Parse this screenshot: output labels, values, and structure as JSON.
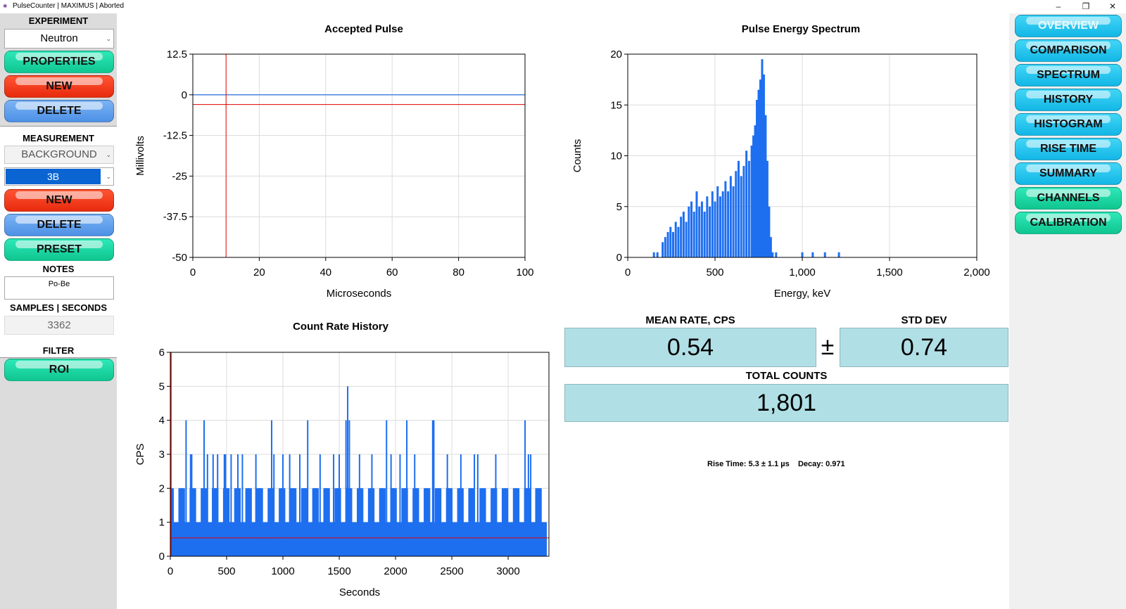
{
  "window": {
    "title": "PulseCounter | MAXIMUS | Aborted",
    "minimize": "–",
    "restore": "❐",
    "close": "✕"
  },
  "left": {
    "experiment_label": "EXPERIMENT",
    "experiment_value": "Neutron",
    "properties": "PROPERTIES",
    "new1": "NEW",
    "delete1": "DELETE",
    "measurement_label": "MEASUREMENT",
    "measurement_type": "BACKGROUND",
    "measurement_value": "3B",
    "new2": "NEW",
    "delete2": "DELETE",
    "preset": "PRESET",
    "notes_label": "NOTES",
    "notes_value": "Po-Be",
    "samples_label": "SAMPLES | SECONDS",
    "samples_value": "3362",
    "filter_label": "FILTER",
    "roi": "ROI"
  },
  "nav": [
    "OVERVIEW",
    "COMPARISON",
    "SPECTRUM",
    "HISTORY",
    "HISTOGRAM",
    "RISE TIME",
    "SUMMARY",
    "CHANNELS",
    "CALIBRATION"
  ],
  "nav_colors": [
    "cyan",
    "cyan",
    "cyan",
    "cyan",
    "cyan",
    "cyan",
    "cyan",
    "green",
    "green"
  ],
  "stats": {
    "mean_label": "MEAN RATE, CPS",
    "mean_value": "0.54",
    "pm": "±",
    "std_label": "STD DEV",
    "std_value": "0.74",
    "total_label": "TOTAL COUNTS",
    "total_value": "1,801",
    "rise_text": "Rise Time: 5.3 ± 1.1 µs    Decay: 0.971"
  },
  "colors": {
    "bar": "#1e6ff0",
    "trace": "#4a86e0",
    "marker": "#e00000",
    "grid": "#dcdcdc"
  },
  "chart_data": [
    {
      "type": "line",
      "title": "Accepted Pulse",
      "xlabel": "Microseconds",
      "ylabel": "Millivolts",
      "xlim": [
        0,
        100
      ],
      "ylim": [
        -50,
        12.5
      ],
      "xticks": [
        "0",
        "20",
        "40",
        "60",
        "80",
        "100"
      ],
      "yticks": [
        "12.5",
        "0",
        "-12.5",
        "-25",
        "-37.5",
        "-50"
      ],
      "series": [
        {
          "x": [
            0,
            100
          ],
          "y": [
            0,
            0
          ]
        }
      ],
      "markers": {
        "vline_x": 10,
        "hline_y": -3
      },
      "grid": true
    },
    {
      "type": "bar",
      "title": "Pulse Energy Spectrum",
      "xlabel": "Energy, keV",
      "ylabel": "Counts",
      "xlim": [
        0,
        2000
      ],
      "ylim": [
        0,
        20
      ],
      "xticks": [
        "0",
        "500",
        "1,000",
        "1,500",
        "2,000"
      ],
      "yticks": [
        "0",
        "5",
        "10",
        "15",
        "20"
      ],
      "x": [
        150,
        170,
        200,
        215,
        230,
        245,
        260,
        275,
        290,
        305,
        320,
        335,
        350,
        365,
        380,
        395,
        410,
        425,
        440,
        455,
        470,
        485,
        500,
        515,
        530,
        545,
        560,
        575,
        590,
        605,
        620,
        635,
        650,
        665,
        680,
        695,
        710,
        720,
        730,
        740,
        750,
        760,
        770,
        780,
        790,
        800,
        810,
        820,
        830,
        850,
        1000,
        1060,
        1130,
        1210
      ],
      "values": [
        0.5,
        0.5,
        1.5,
        2,
        2.5,
        3,
        2.5,
        3.5,
        3,
        4,
        4.5,
        3.5,
        5,
        5.5,
        4.5,
        6.5,
        5,
        5.5,
        4.5,
        6,
        5,
        6.5,
        5.5,
        7,
        6,
        6.5,
        7.5,
        6.5,
        8,
        7,
        8.5,
        9.5,
        8,
        9,
        10.5,
        9.5,
        11,
        12,
        13,
        15.5,
        16.5,
        17.5,
        19.5,
        18,
        14,
        9.5,
        5,
        2,
        0.5,
        0.5,
        0.5,
        0.5,
        0.5,
        0.5
      ],
      "grid": true
    },
    {
      "type": "bar",
      "title": "Count Rate History",
      "xlabel": "Seconds",
      "ylabel": "CPS",
      "xlim": [
        0,
        3362
      ],
      "ylim": [
        0,
        6
      ],
      "xticks": [
        "0",
        "500",
        "1000",
        "1500",
        "2000",
        "2500",
        "3000"
      ],
      "yticks": [
        "0",
        "1",
        "2",
        "3",
        "4",
        "5",
        "6"
      ],
      "mean_line": 0.54,
      "x": [
        140,
        180,
        190,
        300,
        330,
        380,
        420,
        480,
        490,
        540,
        600,
        640,
        760,
        900,
        920,
        1000,
        1060,
        1150,
        1220,
        1330,
        1450,
        1500,
        1560,
        1575,
        1590,
        1680,
        1790,
        1920,
        1960,
        2040,
        2100,
        2170,
        2330,
        2340,
        2460,
        2580,
        2700,
        2730,
        2890,
        3150,
        3180,
        3200
      ],
      "values": [
        4,
        3,
        3,
        4,
        3,
        3,
        3,
        3,
        3,
        3,
        3,
        3,
        3,
        4,
        3,
        3,
        3,
        3,
        4,
        3,
        3,
        3,
        4,
        5,
        4,
        3,
        3,
        4,
        3,
        3,
        4,
        3,
        4,
        4,
        3,
        3,
        3,
        3,
        3,
        4,
        3,
        3
      ],
      "grid": true
    }
  ]
}
